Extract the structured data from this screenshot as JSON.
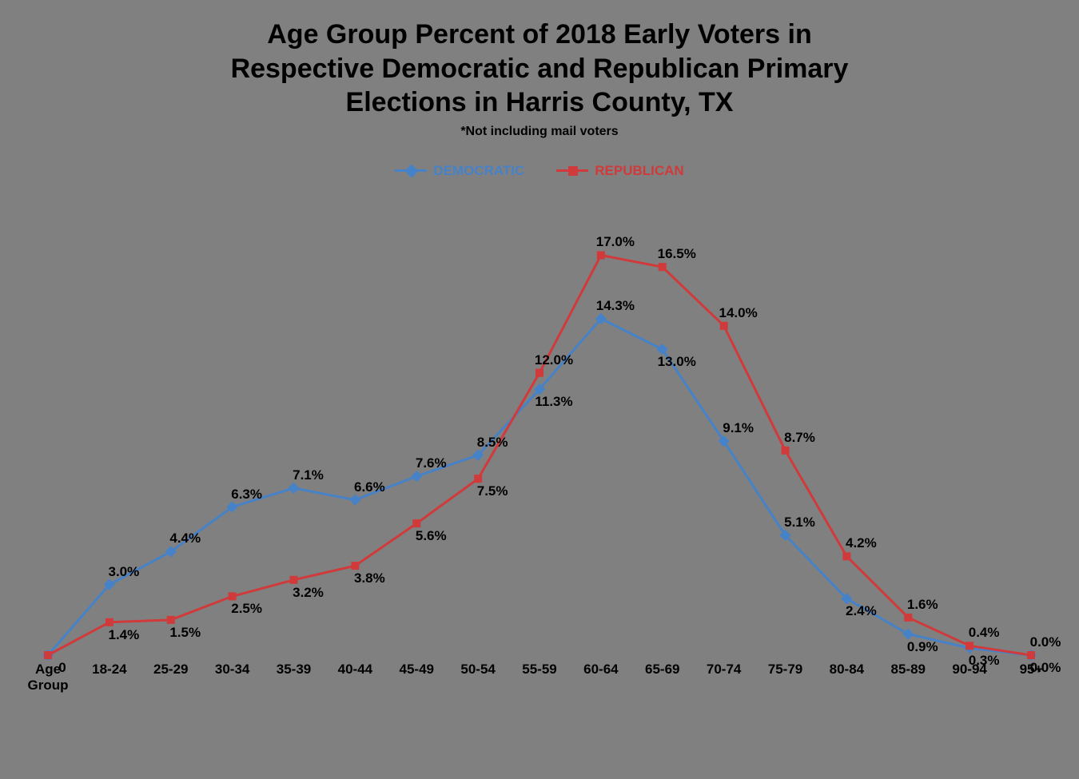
{
  "chart": {
    "type": "line",
    "title_line1": "Age Group Percent of 2018 Early Voters in",
    "title_line2": "Respective Democratic and Republican Primary",
    "title_line3": "Elections in Harris County, TX",
    "subtitle": "*Not including mail voters",
    "title_fontsize": 34,
    "subtitle_fontsize": 16,
    "title_color": "#000000",
    "background_color": "#808080",
    "x_axis_label_first": "Age\nGroup",
    "categories": [
      "Age\nGroup",
      "18-24",
      "25-29",
      "30-34",
      "35-39",
      "40-44",
      "45-49",
      "50-54",
      "55-59",
      "60-64",
      "65-69",
      "70-74",
      "75-79",
      "80-84",
      "85-89",
      "90-94",
      "95+"
    ],
    "ylim": [
      0,
      18
    ],
    "xlabel_fontsize": 17,
    "datalabel_fontsize": 17,
    "line_width": 3,
    "series": [
      {
        "name": "DEMOCRATIC",
        "color": "#4682c8",
        "marker": "diamond",
        "marker_size": 9,
        "values": [
          0,
          3.0,
          4.4,
          6.3,
          7.1,
          6.6,
          7.6,
          8.5,
          11.3,
          14.3,
          13.0,
          9.1,
          5.1,
          2.4,
          0.9,
          0.3,
          0.0
        ],
        "labels": [
          "0",
          "3.0%",
          "4.4%",
          "6.3%",
          "7.1%",
          "6.6%",
          "7.6%",
          "8.5%",
          "11.3%",
          "14.3%",
          "13.0%",
          "9.1%",
          "5.1%",
          "2.4%",
          "0.9%",
          "0.3%",
          "0.0%"
        ],
        "label_pos": [
          "below",
          "above",
          "above",
          "above",
          "above",
          "above",
          "above",
          "above",
          "below",
          "above",
          "below",
          "above",
          "above",
          "below",
          "below",
          "below",
          "below"
        ]
      },
      {
        "name": "REPUBLICAN",
        "color": "#d03a3a",
        "marker": "square",
        "marker_size": 9,
        "values": [
          0,
          1.4,
          1.5,
          2.5,
          3.2,
          3.8,
          5.6,
          7.5,
          12.0,
          17.0,
          16.5,
          14.0,
          8.7,
          4.2,
          1.6,
          0.4,
          0.0
        ],
        "labels": [
          "0",
          "1.4%",
          "1.5%",
          "2.5%",
          "3.2%",
          "3.8%",
          "5.6%",
          "7.5%",
          "12.0%",
          "17.0%",
          "16.5%",
          "14.0%",
          "8.7%",
          "4.2%",
          "1.6%",
          "0.4%",
          "0.0%"
        ],
        "label_pos": [
          "omit",
          "below",
          "below",
          "below",
          "below",
          "below",
          "below",
          "below",
          "above",
          "above",
          "above",
          "above",
          "above",
          "above",
          "above",
          "above",
          "above"
        ]
      }
    ]
  }
}
